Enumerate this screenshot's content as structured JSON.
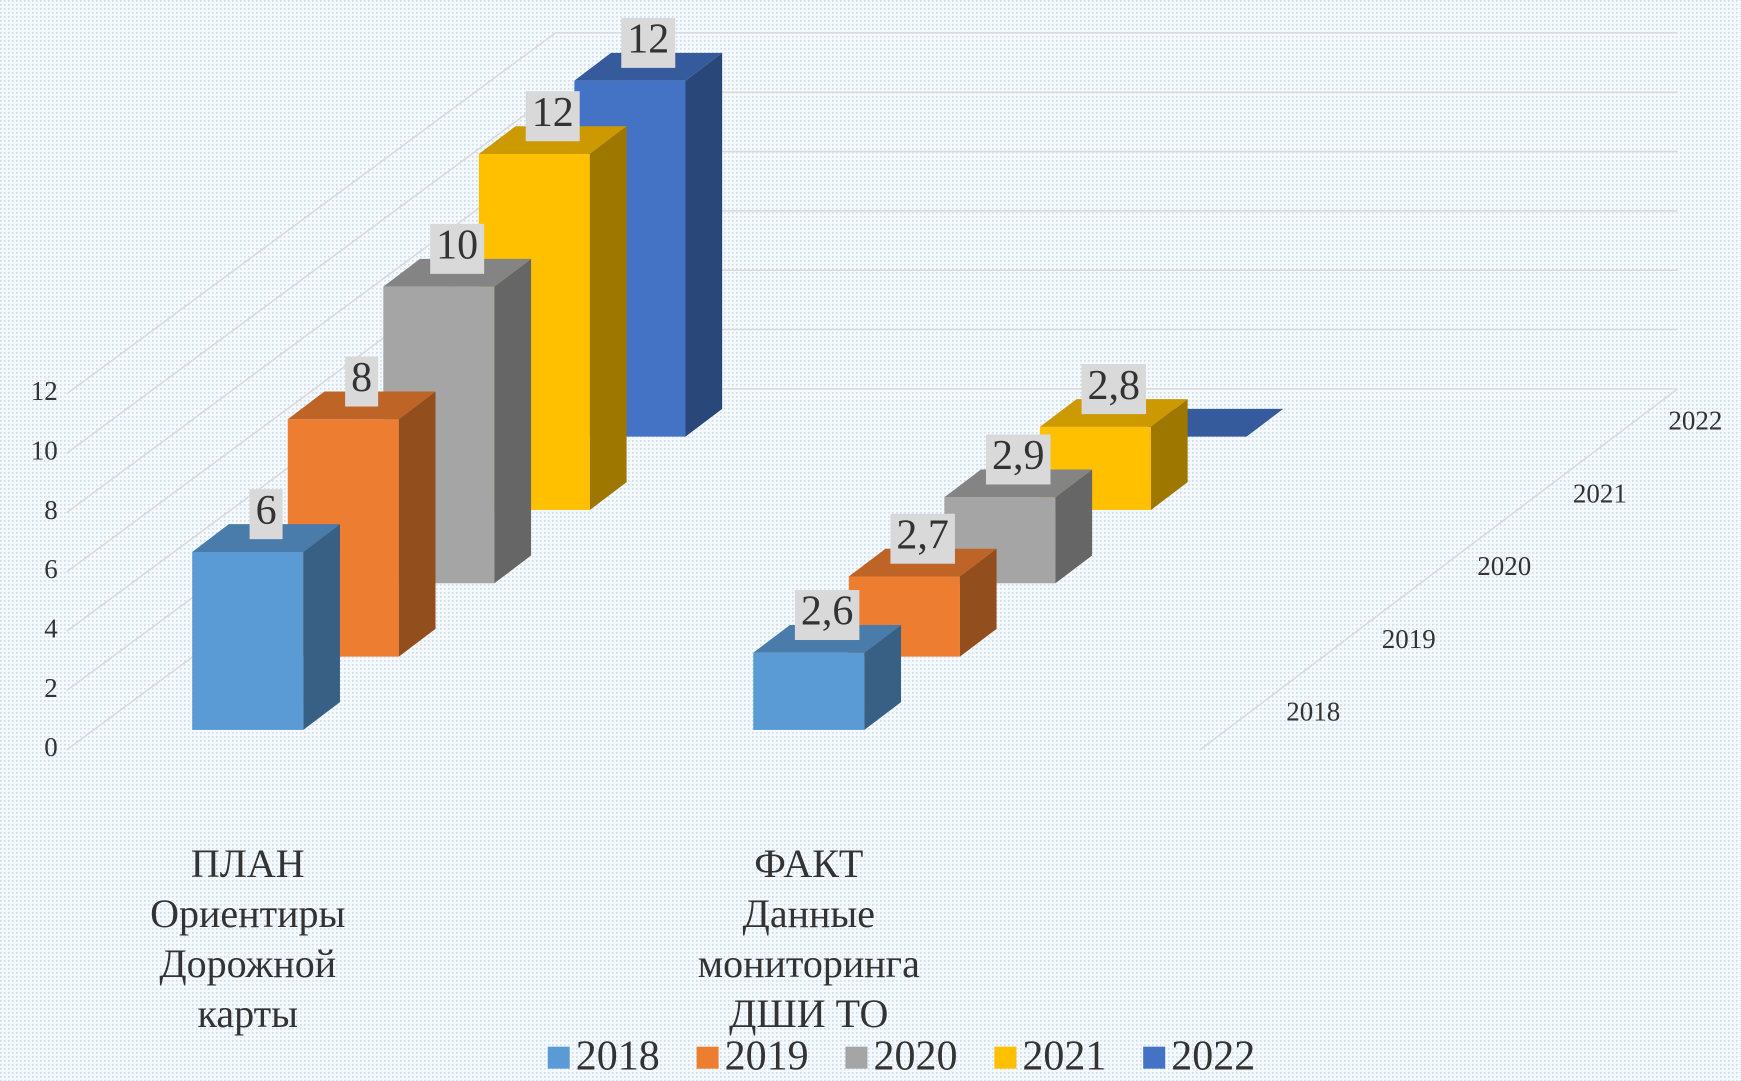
{
  "chart_data": {
    "type": "bar3d",
    "categories": [
      "ПЛАН\nОриентиры\nДорожной\nкарты",
      "ФАКТ\nДанные\nмониторинга\nДШИ ТО"
    ],
    "series": [
      {
        "name": "2018",
        "color": "#5b9bd5",
        "values": [
          6,
          2.6
        ],
        "value_labels": [
          "6",
          "2,6"
        ]
      },
      {
        "name": "2019",
        "color": "#ed7d31",
        "values": [
          8,
          2.7
        ],
        "value_labels": [
          "8",
          "2,7"
        ]
      },
      {
        "name": "2020",
        "color": "#a5a5a5",
        "values": [
          10,
          2.9
        ],
        "value_labels": [
          "10",
          "2,9"
        ]
      },
      {
        "name": "2021",
        "color": "#ffc000",
        "values": [
          12,
          2.8
        ],
        "value_labels": [
          "12",
          "2,8"
        ]
      },
      {
        "name": "2022",
        "color": "#4472c4",
        "values": [
          12,
          0
        ],
        "value_labels": [
          "12",
          null
        ]
      }
    ],
    "ylim": [
      0,
      12
    ],
    "yticks": [
      0,
      2,
      4,
      6,
      8,
      10,
      12
    ],
    "grid": true,
    "legend": "bottom"
  }
}
